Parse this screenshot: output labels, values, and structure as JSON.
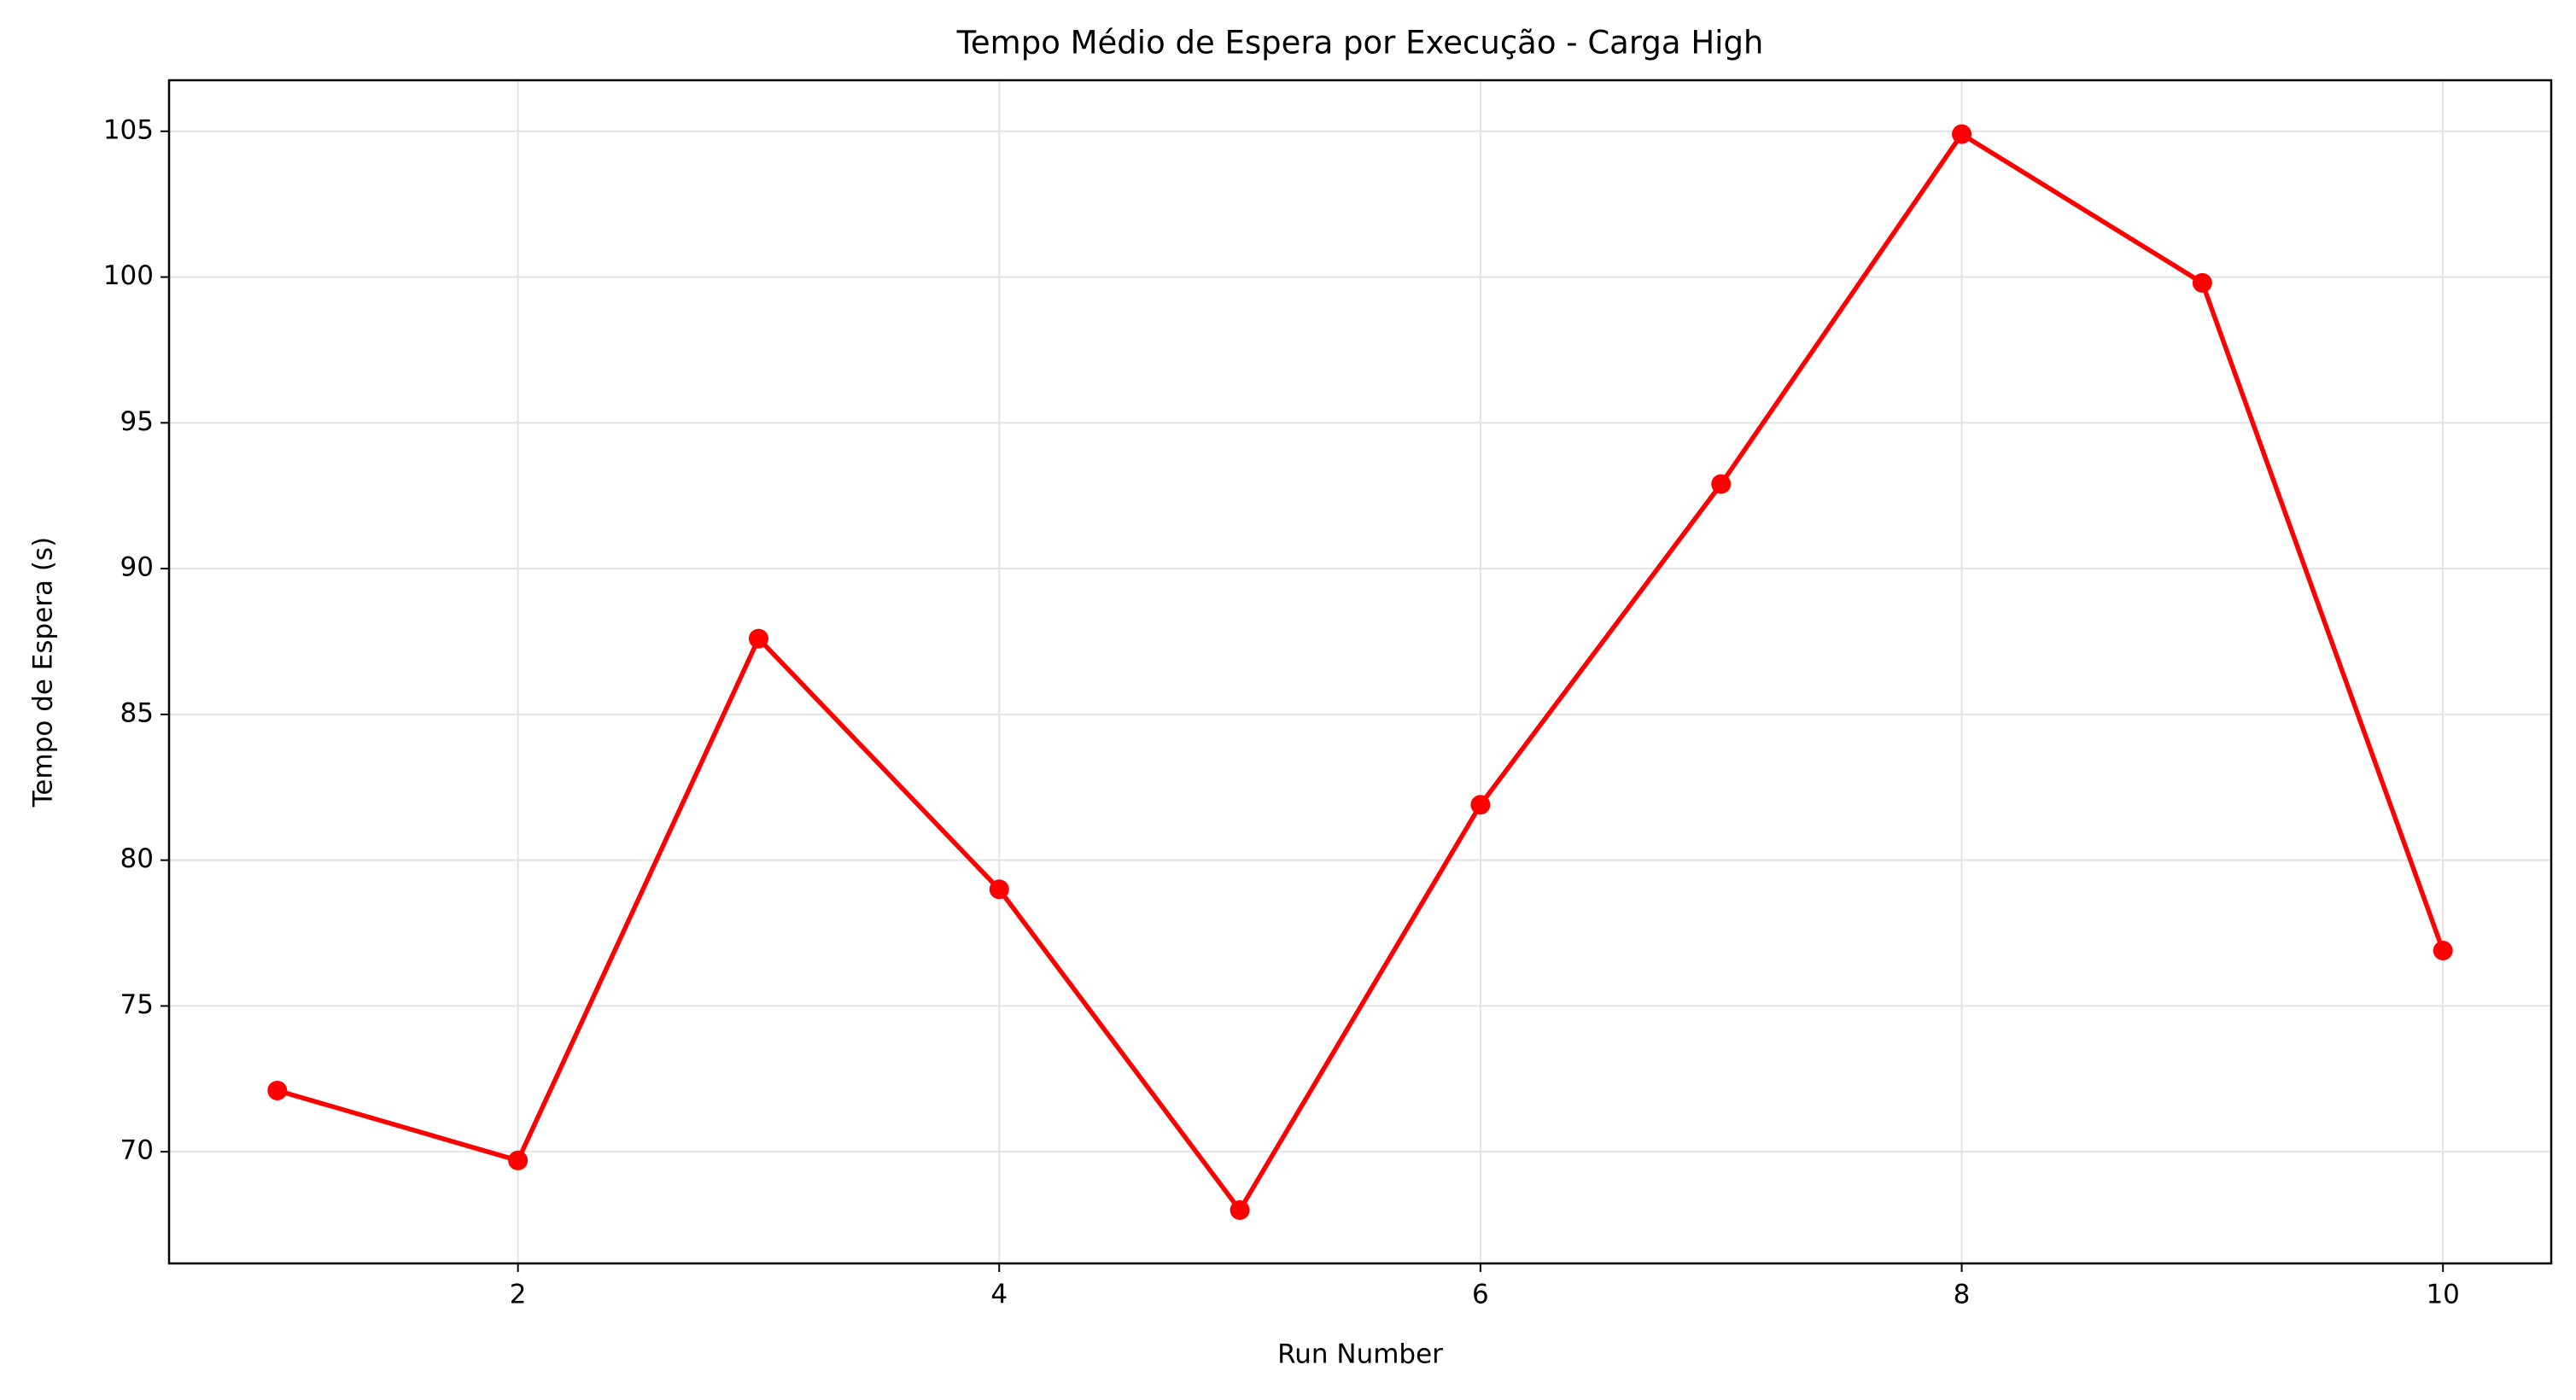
{
  "chart_data": {
    "type": "line",
    "title": "Tempo Médio de Espera por Execução - Carga High",
    "xlabel": "Run Number",
    "ylabel": "Tempo de Espera (s)",
    "x": [
      1,
      2,
      3,
      4,
      5,
      6,
      7,
      8,
      9,
      10
    ],
    "series": [
      {
        "name": "Tempo Médio de Espera",
        "color": "#ff0000",
        "values": [
          72.1,
          69.7,
          87.6,
          79.0,
          68.0,
          81.9,
          92.9,
          104.9,
          99.8,
          76.9
        ]
      }
    ],
    "xlim": [
      0.55,
      10.45
    ],
    "xticks": [
      2,
      4,
      6,
      8,
      10
    ],
    "ylim": [
      66.17,
      106.75
    ],
    "yticks": [
      70,
      75,
      80,
      85,
      90,
      95,
      100,
      105
    ],
    "grid": true
  }
}
